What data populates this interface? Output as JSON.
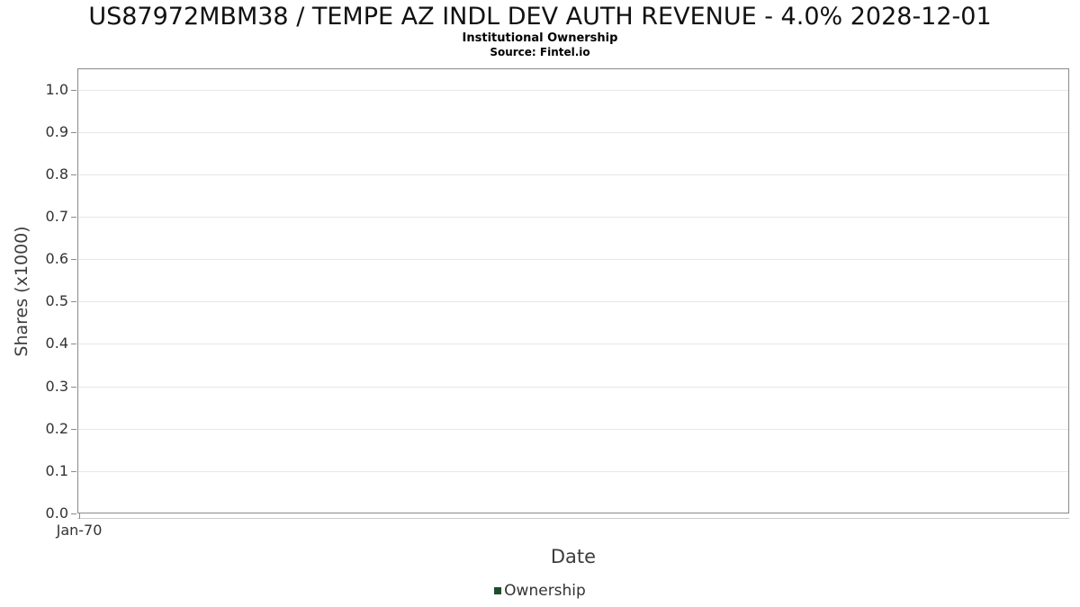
{
  "chart_data": {
    "type": "line",
    "title": "US87972MBM38 / TEMPE AZ INDL DEV AUTH REVENUE - 4.0% 2028-12-01",
    "subtitle": "Institutional Ownership",
    "source": "Source: Fintel.io",
    "xlabel": "Date",
    "ylabel": "Shares (x1000)",
    "x_ticks": [
      "Jan-70"
    ],
    "x_tick_fractions": [
      0.002
    ],
    "y_ticks": [
      "0.0",
      "0.1",
      "0.2",
      "0.3",
      "0.4",
      "0.5",
      "0.6",
      "0.7",
      "0.8",
      "0.9",
      "1.0"
    ],
    "ylim": [
      0,
      1.05
    ],
    "grid": true,
    "legend_position": "bottom",
    "series": [
      {
        "name": "Ownership",
        "color": "#1e4d2b",
        "x": [],
        "values": []
      }
    ]
  },
  "colors": {
    "plot_border": "#8a8a8a",
    "gridline": "#e7e7e7",
    "axis_underline": "#cccccc",
    "tick_text": "#333333",
    "axis_label_text": "#3d3d3d",
    "title_text": "#111111",
    "legend_marker": "#1e4d2b"
  }
}
